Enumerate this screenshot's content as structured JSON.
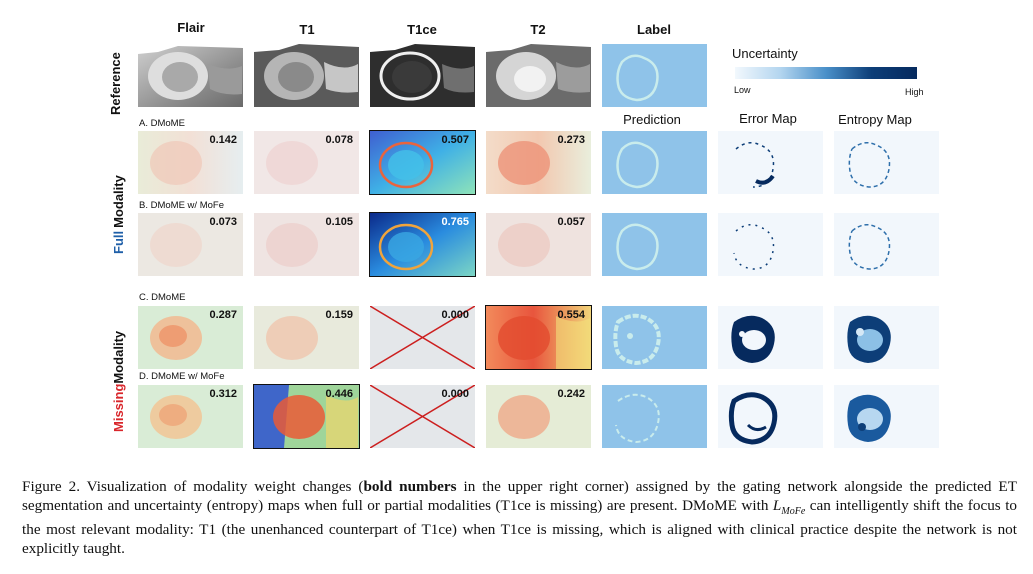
{
  "columns": {
    "flair": "Flair",
    "t1": "T1",
    "t1ce": "T1ce",
    "t2": "T2",
    "label": "Label"
  },
  "side_labels": {
    "reference": "Reference",
    "full_a": "Full",
    "full_b": "Modality",
    "missing_a": "Missing",
    "missing_b": "Modality"
  },
  "legend": {
    "title": "Uncertainty",
    "low": "Low",
    "high": "High"
  },
  "subheads": {
    "prediction": "Prediction",
    "error": "Error Map",
    "entropy": "Entropy Map"
  },
  "rows": {
    "a": {
      "label": "A. DMoME",
      "weights": [
        "0.142",
        "0.078",
        "0.507",
        "0.273"
      ]
    },
    "b": {
      "label": "B. DMoME w/ MoFe",
      "weights": [
        "0.073",
        "0.105",
        "0.765",
        "0.057"
      ]
    },
    "c": {
      "label": "C. DMoME",
      "weights": [
        "0.287",
        "0.159",
        "0.000",
        "0.554"
      ]
    },
    "d": {
      "label": "D. DMoME w/ MoFe",
      "weights": [
        "0.312",
        "0.446",
        "0.000",
        "0.242"
      ]
    }
  },
  "caption": {
    "p1": "Figure 2.  Visualization of modality weight changes (",
    "bold": "bold numbers",
    "p2": " in the upper right corner) assigned by the gating network alongside the predicted ET segmentation and uncertainty (entropy) maps when full or partial modalities (T1ce is missing) are present. DMoME with ",
    "math_base": "L",
    "math_sub": "MoFe",
    "p3": " can intelligently shift the focus to the most relevant modality: T1 (the unenhanced counterpart of T1ce) when T1ce is missing, which is aligned with clinical practice despite the network is not explicitly taught."
  },
  "colors": {
    "label_bg": "#8fc3e9",
    "label_ring": "#c9ecec",
    "full_blue": "#1f5fa8",
    "missing_red": "#d9262b",
    "cross": "#cc1f1f",
    "grey_tile": "#e4e7ea"
  }
}
